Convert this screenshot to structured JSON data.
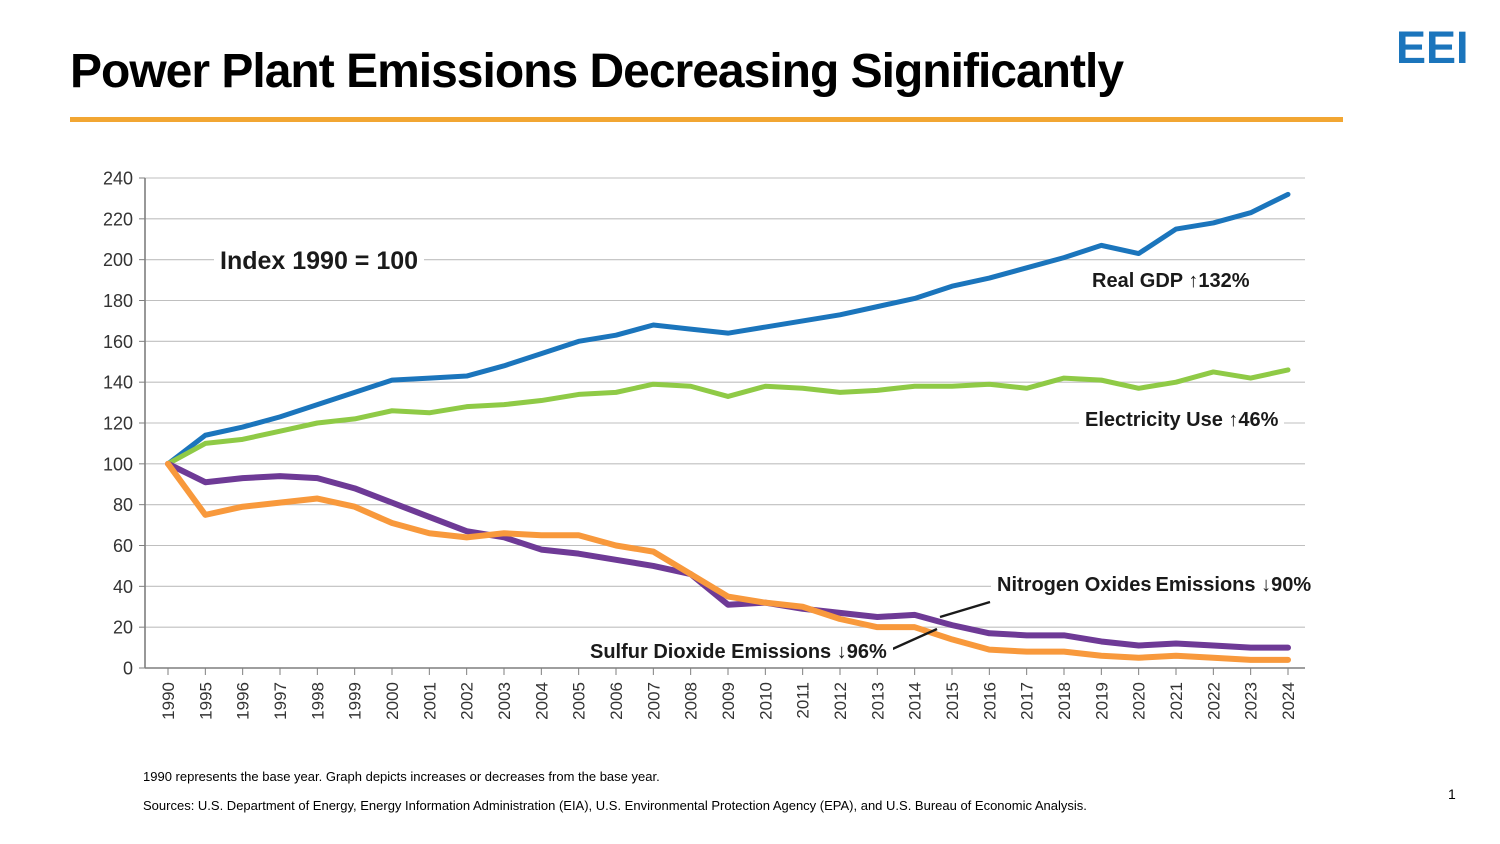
{
  "header": {
    "title": "Power Plant Emissions Decreasing Significantly",
    "logo": "EEI",
    "accent_color": "#F2A632",
    "logo_color": "#1B75BC"
  },
  "chart_data": {
    "type": "line",
    "index_label": "Index 1990 = 100",
    "categories": [
      "1990",
      "1995",
      "1996",
      "1997",
      "1998",
      "1999",
      "2000",
      "2001",
      "2002",
      "2003",
      "2004",
      "2005",
      "2006",
      "2007",
      "2008",
      "2009",
      "2010",
      "2011",
      "2012",
      "2013",
      "2014",
      "2015",
      "2016",
      "2017",
      "2018",
      "2019",
      "2020",
      "2021",
      "2022",
      "2023",
      "2024"
    ],
    "ylim": [
      0,
      240
    ],
    "ytick_step": 20,
    "grid": true,
    "legend_position": "inline-annotations",
    "series": [
      {
        "name": "Real GDP",
        "label": "Real GDP ↑132%",
        "color": "#1B75BC",
        "values": [
          100,
          114,
          118,
          123,
          129,
          135,
          141,
          142,
          143,
          148,
          154,
          160,
          163,
          168,
          166,
          164,
          167,
          170,
          173,
          177,
          181,
          187,
          191,
          196,
          201,
          207,
          203,
          215,
          218,
          223,
          232
        ]
      },
      {
        "name": "Electricity Use",
        "label": "Electricity Use ↑46%",
        "color": "#8FCA46",
        "values": [
          100,
          110,
          112,
          116,
          120,
          122,
          126,
          125,
          128,
          129,
          131,
          134,
          135,
          139,
          138,
          133,
          138,
          137,
          135,
          136,
          138,
          138,
          139,
          137,
          142,
          141,
          137,
          140,
          145,
          142,
          146
        ]
      },
      {
        "name": "Nitrogen Oxides Emissions",
        "label": "Nitrogen Oxides Emissions ↓90%",
        "color": "#6E3A96",
        "values": [
          100,
          91,
          93,
          94,
          93,
          88,
          81,
          74,
          67,
          64,
          58,
          56,
          53,
          50,
          46,
          31,
          32,
          29,
          27,
          25,
          26,
          21,
          17,
          16,
          16,
          13,
          11,
          12,
          11,
          10,
          10
        ]
      },
      {
        "name": "Sulfur Dioxide Emissions",
        "label": "Sulfur Dioxide Emissions ↓96%",
        "color": "#F8993C",
        "values": [
          100,
          75,
          79,
          81,
          83,
          79,
          71,
          66,
          64,
          66,
          65,
          65,
          60,
          57,
          46,
          35,
          32,
          30,
          24,
          20,
          20,
          14,
          9,
          8,
          8,
          6,
          5,
          6,
          5,
          4,
          4
        ]
      }
    ],
    "axis_colors": {
      "grid": "#BFBFBF",
      "spine": "#7F7F7F",
      "tick_label": "#333333"
    }
  },
  "footer": {
    "note": "1990 represents the base year. Graph depicts increases or decreases from the base year.",
    "sources": "Sources: U.S. Department of Energy, Energy Information Administration (EIA), U.S. Environmental Protection Agency (EPA), and U.S. Bureau of Economic Analysis.",
    "page_number": "1"
  }
}
